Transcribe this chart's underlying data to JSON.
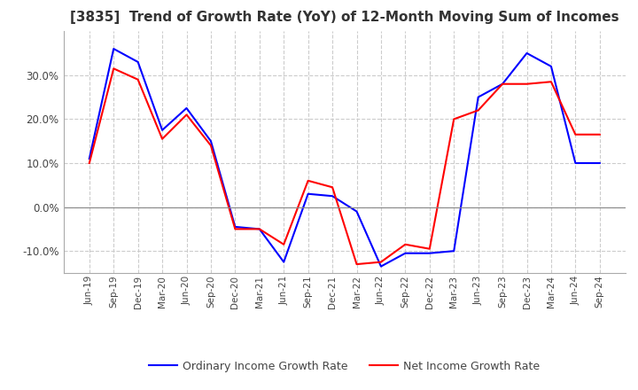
{
  "title": "[3835]  Trend of Growth Rate (YoY) of 12-Month Moving Sum of Incomes",
  "title_fontsize": 11,
  "x_labels": [
    "Jun-19",
    "Sep-19",
    "Dec-19",
    "Mar-20",
    "Jun-20",
    "Sep-20",
    "Dec-20",
    "Mar-21",
    "Jun-21",
    "Sep-21",
    "Dec-21",
    "Mar-22",
    "Jun-22",
    "Sep-22",
    "Dec-22",
    "Mar-23",
    "Jun-23",
    "Sep-23",
    "Dec-23",
    "Mar-24",
    "Jun-24",
    "Sep-24"
  ],
  "ordinary_income": [
    11.0,
    36.0,
    33.0,
    17.5,
    22.5,
    15.0,
    -4.5,
    -5.0,
    -12.5,
    3.0,
    2.5,
    -1.0,
    -13.5,
    -10.5,
    -10.5,
    -10.0,
    25.0,
    28.0,
    35.0,
    32.0,
    10.0,
    10.0
  ],
  "net_income": [
    10.0,
    31.5,
    29.0,
    15.5,
    21.0,
    14.0,
    -5.0,
    -5.0,
    -8.5,
    6.0,
    4.5,
    -13.0,
    -12.5,
    -8.5,
    -9.5,
    20.0,
    22.0,
    28.0,
    28.0,
    28.5,
    16.5,
    16.5
  ],
  "ordinary_color": "#0000ff",
  "net_color": "#ff0000",
  "ylim": [
    -15,
    40
  ],
  "yticks": [
    -10.0,
    0.0,
    10.0,
    20.0,
    30.0
  ],
  "background_color": "#ffffff",
  "grid_color": "#cccccc",
  "legend_ordinary": "Ordinary Income Growth Rate",
  "legend_net": "Net Income Growth Rate"
}
